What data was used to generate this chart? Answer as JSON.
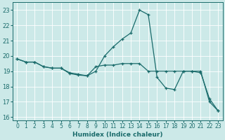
{
  "xlabel": "Humidex (Indice chaleur)",
  "xlim": [
    -0.5,
    23.5
  ],
  "ylim": [
    15.8,
    23.5
  ],
  "yticks": [
    16,
    17,
    18,
    19,
    20,
    21,
    22,
    23
  ],
  "xticks": [
    0,
    1,
    2,
    3,
    4,
    5,
    6,
    7,
    8,
    9,
    10,
    11,
    12,
    13,
    14,
    15,
    16,
    17,
    18,
    19,
    20,
    21,
    22,
    23
  ],
  "bg_color": "#cce9e8",
  "line_color": "#1a6b6b",
  "line1_x": [
    0,
    1,
    2,
    3,
    4,
    5,
    6,
    7,
    8,
    9,
    10,
    11,
    12,
    13,
    14,
    15,
    16,
    17,
    18,
    19,
    20,
    21,
    22,
    23
  ],
  "line1_y": [
    19.8,
    19.6,
    19.6,
    19.3,
    19.2,
    19.2,
    18.85,
    18.75,
    18.7,
    19.3,
    19.4,
    19.4,
    19.5,
    19.5,
    19.5,
    19.0,
    19.0,
    19.0,
    19.0,
    19.0,
    19.0,
    19.0,
    17.0,
    16.4
  ],
  "line2_x": [
    0,
    1,
    2,
    3,
    4,
    5,
    6,
    7,
    8,
    9,
    10,
    11,
    12,
    13,
    14,
    15,
    16,
    17,
    18,
    19,
    20,
    21,
    22,
    23
  ],
  "line2_y": [
    19.8,
    19.6,
    19.6,
    19.3,
    19.2,
    19.2,
    18.9,
    18.8,
    18.7,
    19.0,
    20.0,
    20.6,
    21.1,
    21.5,
    23.0,
    22.7,
    18.6,
    17.9,
    17.8,
    19.0,
    19.0,
    18.9,
    17.2,
    16.4
  ],
  "tick_labelsize": 5.5,
  "xlabel_fontsize": 6.5,
  "linewidth": 0.9,
  "markersize": 3.5
}
